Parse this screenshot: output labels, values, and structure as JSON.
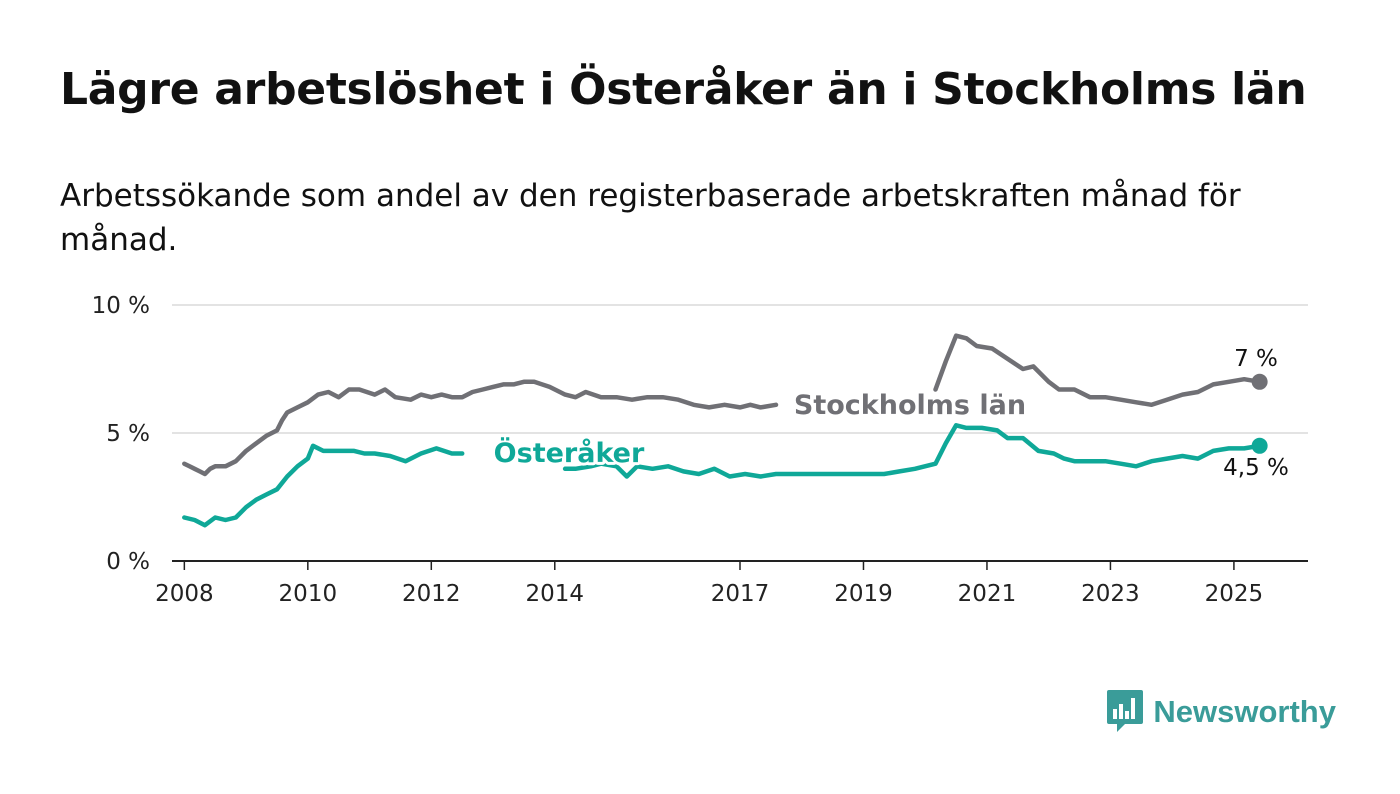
{
  "title": "Lägre arbetslöshet i Österåker än i Stockholms län",
  "subtitle": "Arbetssökande som andel av den registerbaserade arbetskraften månad för månad.",
  "brand": {
    "name": "Newsworthy",
    "icon": "bar-chart-speech-bubble-icon",
    "color": "#3a9c99"
  },
  "chart_data": {
    "type": "line",
    "x_ticks": [
      "2008",
      "2010",
      "2012",
      "2014",
      "2017",
      "2019",
      "2021",
      "2023",
      "2025"
    ],
    "y_ticks": [
      "0 %",
      "5 %",
      "10 %"
    ],
    "ylim": [
      0,
      10
    ],
    "grid": true,
    "series": [
      {
        "name": "Stockholms län",
        "color": "#707075",
        "end_label": "7 %",
        "points": [
          [
            "2008-01",
            3.8
          ],
          [
            "2008-02",
            3.7
          ],
          [
            "2008-03",
            3.6
          ],
          [
            "2008-04",
            3.5
          ],
          [
            "2008-05",
            3.4
          ],
          [
            "2008-06",
            3.6
          ],
          [
            "2008-07",
            3.7
          ],
          [
            "2008-09",
            3.7
          ],
          [
            "2008-11",
            3.9
          ],
          [
            "2009-01",
            4.3
          ],
          [
            "2009-03",
            4.6
          ],
          [
            "2009-05",
            4.9
          ],
          [
            "2009-07",
            5.1
          ],
          [
            "2009-08",
            5.5
          ],
          [
            "2009-09",
            5.8
          ],
          [
            "2009-11",
            6.0
          ],
          [
            "2010-01",
            6.2
          ],
          [
            "2010-03",
            6.5
          ],
          [
            "2010-05",
            6.6
          ],
          [
            "2010-07",
            6.4
          ],
          [
            "2010-09",
            6.7
          ],
          [
            "2010-11",
            6.7
          ],
          [
            "2011-02",
            6.5
          ],
          [
            "2011-04",
            6.7
          ],
          [
            "2011-06",
            6.4
          ],
          [
            "2011-09",
            6.3
          ],
          [
            "2011-11",
            6.5
          ],
          [
            "2012-01",
            6.4
          ],
          [
            "2012-03",
            6.5
          ],
          [
            "2012-05",
            6.4
          ],
          [
            "2012-07",
            6.4
          ],
          [
            "2012-09",
            6.6
          ],
          [
            "2012-11",
            6.7
          ],
          [
            "2013-01",
            6.8
          ],
          [
            "2013-03",
            6.9
          ],
          [
            "2013-05",
            6.9
          ],
          [
            "2013-07",
            7.0
          ],
          [
            "2013-09",
            7.0
          ],
          [
            "2013-12",
            6.8
          ],
          [
            "2014-03",
            6.5
          ],
          [
            "2014-05",
            6.4
          ],
          [
            "2014-07",
            6.6
          ],
          [
            "2014-10",
            6.4
          ],
          [
            "2015-01",
            6.4
          ],
          [
            "2015-04",
            6.3
          ],
          [
            "2015-07",
            6.4
          ],
          [
            "2015-10",
            6.4
          ],
          [
            "2016-01",
            6.3
          ],
          [
            "2016-04",
            6.1
          ],
          [
            "2016-07",
            6.0
          ],
          [
            "2016-10",
            6.1
          ],
          [
            "2017-01",
            6.0
          ],
          [
            "2017-03",
            6.1
          ],
          [
            "2017-05",
            6.0
          ],
          [
            "2017-08",
            6.1
          ],
          [
            "2020-03",
            6.7
          ],
          [
            "2020-05",
            7.8
          ],
          [
            "2020-07",
            8.8
          ],
          [
            "2020-09",
            8.7
          ],
          [
            "2020-11",
            8.4
          ],
          [
            "2021-02",
            8.3
          ],
          [
            "2021-05",
            7.9
          ],
          [
            "2021-08",
            7.5
          ],
          [
            "2021-10",
            7.6
          ],
          [
            "2022-01",
            7.0
          ],
          [
            "2022-03",
            6.7
          ],
          [
            "2022-06",
            6.7
          ],
          [
            "2022-09",
            6.4
          ],
          [
            "2022-12",
            6.4
          ],
          [
            "2023-03",
            6.3
          ],
          [
            "2023-06",
            6.2
          ],
          [
            "2023-09",
            6.1
          ],
          [
            "2023-12",
            6.3
          ],
          [
            "2024-03",
            6.5
          ],
          [
            "2024-06",
            6.6
          ],
          [
            "2024-09",
            6.9
          ],
          [
            "2024-12",
            7.0
          ],
          [
            "2025-03",
            7.1
          ],
          [
            "2025-06",
            7.0
          ]
        ]
      },
      {
        "name": "Österåker",
        "color": "#0fa898",
        "end_label": "4,5 %",
        "points": [
          [
            "2008-01",
            1.7
          ],
          [
            "2008-03",
            1.6
          ],
          [
            "2008-05",
            1.4
          ],
          [
            "2008-07",
            1.7
          ],
          [
            "2008-09",
            1.6
          ],
          [
            "2008-11",
            1.7
          ],
          [
            "2009-01",
            2.1
          ],
          [
            "2009-03",
            2.4
          ],
          [
            "2009-05",
            2.6
          ],
          [
            "2009-07",
            2.8
          ],
          [
            "2009-09",
            3.3
          ],
          [
            "2009-11",
            3.7
          ],
          [
            "2010-01",
            4.0
          ],
          [
            "2010-02",
            4.5
          ],
          [
            "2010-04",
            4.3
          ],
          [
            "2010-06",
            4.3
          ],
          [
            "2010-08",
            4.3
          ],
          [
            "2010-10",
            4.3
          ],
          [
            "2010-12",
            4.2
          ],
          [
            "2011-02",
            4.2
          ],
          [
            "2011-05",
            4.1
          ],
          [
            "2011-08",
            3.9
          ],
          [
            "2011-11",
            4.2
          ],
          [
            "2012-02",
            4.4
          ],
          [
            "2012-05",
            4.2
          ],
          [
            "2012-07",
            4.2
          ],
          [
            "2014-03",
            3.6
          ],
          [
            "2014-05",
            3.6
          ],
          [
            "2014-08",
            3.7
          ],
          [
            "2014-10",
            3.8
          ],
          [
            "2015-01",
            3.7
          ],
          [
            "2015-03",
            3.3
          ],
          [
            "2015-05",
            3.7
          ],
          [
            "2015-08",
            3.6
          ],
          [
            "2015-11",
            3.7
          ],
          [
            "2016-02",
            3.5
          ],
          [
            "2016-05",
            3.4
          ],
          [
            "2016-08",
            3.6
          ],
          [
            "2016-11",
            3.3
          ],
          [
            "2017-02",
            3.4
          ],
          [
            "2017-05",
            3.3
          ],
          [
            "2017-08",
            3.4
          ],
          [
            "2017-11",
            3.4
          ],
          [
            "2018-02",
            3.4
          ],
          [
            "2018-05",
            3.4
          ],
          [
            "2018-08",
            3.4
          ],
          [
            "2018-11",
            3.4
          ],
          [
            "2019-02",
            3.4
          ],
          [
            "2019-05",
            3.4
          ],
          [
            "2019-08",
            3.5
          ],
          [
            "2019-11",
            3.6
          ],
          [
            "2020-03",
            3.8
          ],
          [
            "2020-05",
            4.6
          ],
          [
            "2020-07",
            5.3
          ],
          [
            "2020-09",
            5.2
          ],
          [
            "2020-12",
            5.2
          ],
          [
            "2021-03",
            5.1
          ],
          [
            "2021-05",
            4.8
          ],
          [
            "2021-08",
            4.8
          ],
          [
            "2021-11",
            4.3
          ],
          [
            "2022-02",
            4.2
          ],
          [
            "2022-04",
            4.0
          ],
          [
            "2022-06",
            3.9
          ],
          [
            "2022-09",
            3.9
          ],
          [
            "2022-12",
            3.9
          ],
          [
            "2023-03",
            3.8
          ],
          [
            "2023-06",
            3.7
          ],
          [
            "2023-09",
            3.9
          ],
          [
            "2023-12",
            4.0
          ],
          [
            "2024-03",
            4.1
          ],
          [
            "2024-06",
            4.0
          ],
          [
            "2024-09",
            4.3
          ],
          [
            "2024-12",
            4.4
          ],
          [
            "2025-03",
            4.4
          ],
          [
            "2025-06",
            4.5
          ]
        ]
      }
    ]
  }
}
